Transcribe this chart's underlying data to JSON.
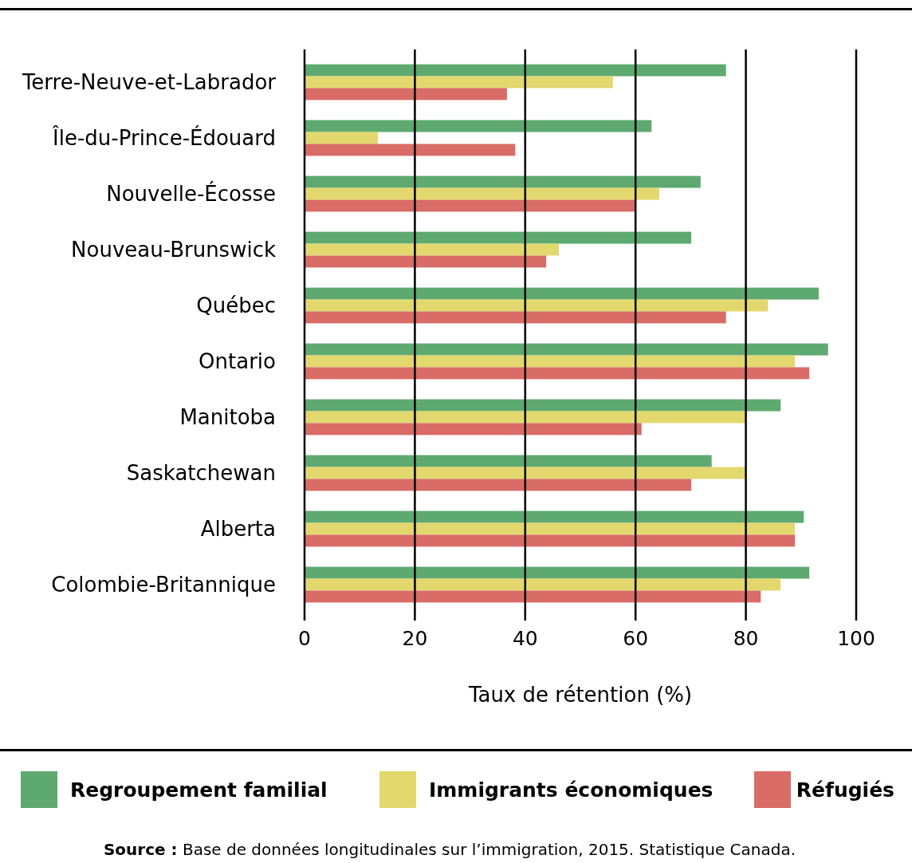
{
  "chart_data": {
    "type": "bar",
    "orientation": "horizontal",
    "xlabel": "Taux de rétention (%)",
    "categories": [
      "Terre-Neuve-et-Labrador",
      "Île-du-Prince-Édouard",
      "Nouvelle-Écosse",
      "Nouveau-Brunswick",
      "Québec",
      "Ontario",
      "Manitoba",
      "Saskatchewan",
      "Alberta",
      "Colombie-Britannique"
    ],
    "series": [
      {
        "name": "Regroupement familial",
        "color": "#5ea96f",
        "values": [
          76.4,
          62.9,
          71.8,
          70.1,
          93.2,
          94.9,
          86.3,
          73.8,
          90.5,
          91.5
        ]
      },
      {
        "name": "Immigrants économiques",
        "color": "#e2d86e",
        "values": [
          55.9,
          13.3,
          64.3,
          46.1,
          84.0,
          88.9,
          79.9,
          79.9,
          88.9,
          86.3
        ]
      },
      {
        "name": "Réfugiés",
        "color": "#d96c67",
        "values": [
          36.7,
          38.2,
          60.0,
          43.8,
          76.4,
          91.5,
          61.1,
          70.1,
          88.9,
          82.7
        ]
      }
    ],
    "xlim": [
      0,
      100
    ],
    "xticks": [
      0,
      20,
      40,
      60,
      80,
      100
    ],
    "grid": "x",
    "legend": "bottom",
    "annotations": [
      "Source : Base de données longitudinales sur l’immigration, 2015. Statistique Canada."
    ]
  }
}
